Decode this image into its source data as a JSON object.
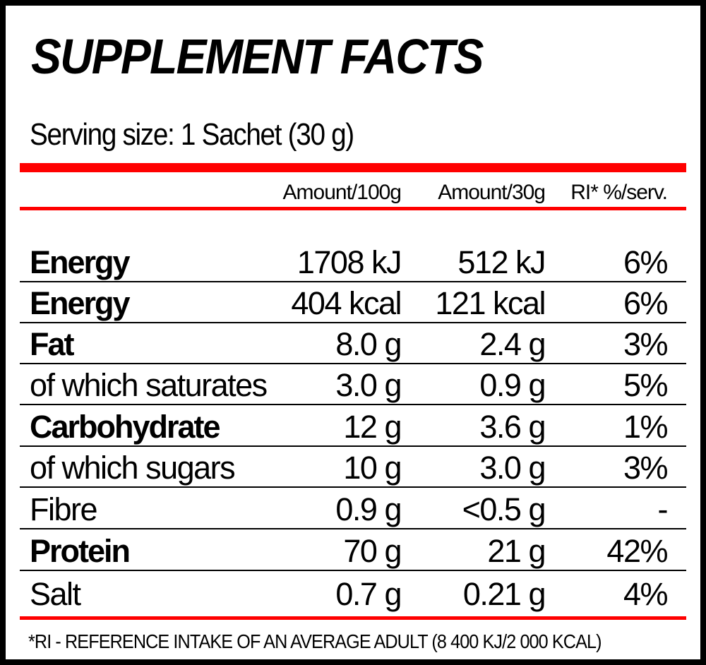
{
  "title": "SUPPLEMENT FACTS",
  "serving_size": "Serving size: 1 Sachet (30 g)",
  "headers": [
    "Amount/100g",
    "Amount/30g",
    "RI* %/serv."
  ],
  "rows": [
    {
      "label": "Energy",
      "per100": "1708 kJ",
      "perServ": "512 kJ",
      "ri": "6%",
      "bold": true
    },
    {
      "label": "Energy",
      "per100": "404 kcal",
      "perServ": "121 kcal",
      "ri": "6%",
      "bold": true
    },
    {
      "label": "Fat",
      "per100": "8.0 g",
      "perServ": "2.4 g",
      "ri": "3%",
      "bold": true
    },
    {
      "label": "of which saturates",
      "per100": "3.0 g",
      "perServ": "0.9 g",
      "ri": "5%",
      "bold": false
    },
    {
      "label": "Carbohydrate",
      "per100": "12 g",
      "perServ": "3.6 g",
      "ri": "1%",
      "bold": true
    },
    {
      "label": "of which sugars",
      "per100": "10 g",
      "perServ": "3.0 g",
      "ri": "3%",
      "bold": false
    },
    {
      "label": "Fibre",
      "per100": "0.9 g",
      "perServ": "<0.5 g",
      "ri": "-",
      "bold": false
    },
    {
      "label": "Protein",
      "per100": "70 g",
      "perServ": "21 g",
      "ri": "42%",
      "bold": true
    },
    {
      "label": "Salt",
      "per100": "0.7 g",
      "perServ": "0.21 g",
      "ri": "4%",
      "bold": false
    }
  ],
  "footnote": "*RI - REFERENCE INTAKE OF AN AVERAGE ADULT (8 400 KJ/2 000 KCAL)",
  "colors": {
    "accent": "#ff0000",
    "border": "#000000"
  }
}
